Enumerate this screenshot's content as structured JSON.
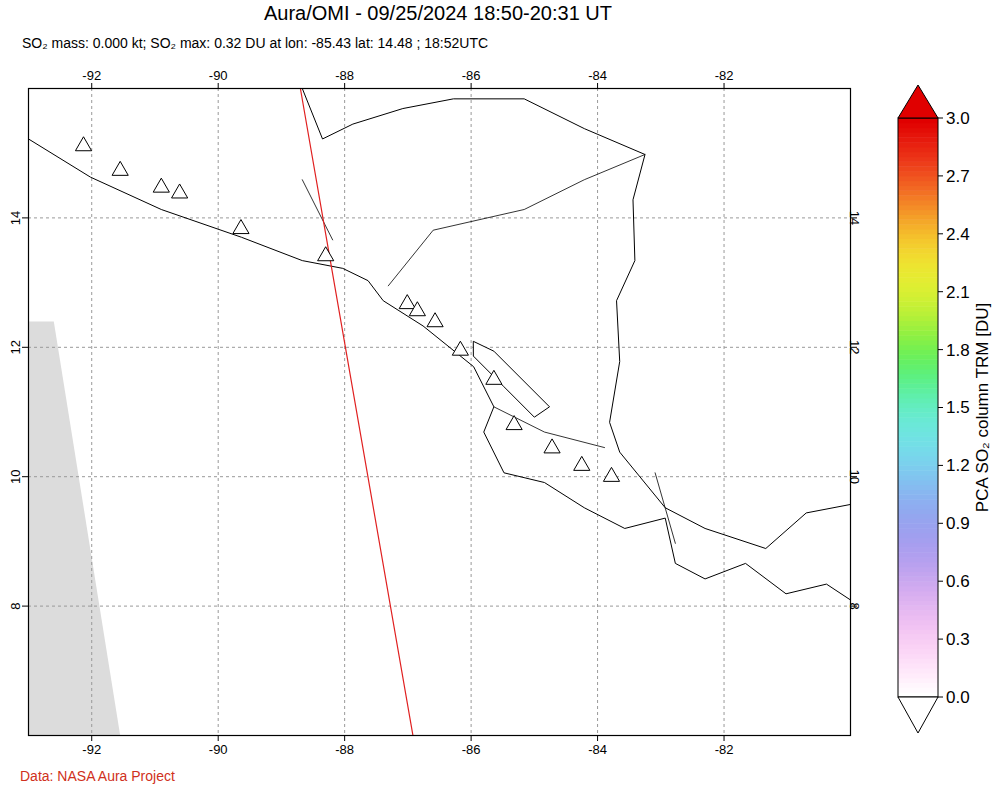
{
  "chart_data": {
    "type": "map",
    "title": "Aura/OMI - 09/25/2024 18:50-20:31 UT",
    "subtitle": "SO₂ mass: 0.000 kt; SO₂ max: 0.32 DU at lon: -85.43 lat: 14.48 ; 18:52UTC",
    "caption": "Data: NASA Aura Project",
    "xlim": [
      -93,
      -80
    ],
    "ylim": [
      6,
      16
    ],
    "xticks": [
      -92,
      -90,
      -88,
      -86,
      -84,
      -82
    ],
    "yticks": [
      8,
      10,
      12,
      14
    ],
    "grid": true,
    "coastlines": [
      [
        [
          -93.0,
          15.22
        ],
        [
          -92.02,
          14.63
        ],
        [
          -90.9,
          14.13
        ],
        [
          -89.63,
          13.7
        ],
        [
          -88.67,
          13.34
        ],
        [
          -88.03,
          13.22
        ],
        [
          -87.63,
          13.03
        ],
        [
          -87.39,
          12.72
        ],
        [
          -86.76,
          12.33
        ],
        [
          -85.96,
          11.7
        ],
        [
          -85.64,
          11.08
        ],
        [
          -85.8,
          10.69
        ],
        [
          -85.48,
          10.06
        ],
        [
          -84.84,
          9.91
        ],
        [
          -84.21,
          9.52
        ],
        [
          -83.57,
          9.2
        ],
        [
          -82.93,
          9.36
        ],
        [
          -82.77,
          8.66
        ],
        [
          -82.3,
          8.42
        ],
        [
          -81.66,
          8.66
        ],
        [
          -81.02,
          8.19
        ],
        [
          -80.38,
          8.34
        ],
        [
          -79.9,
          8.03
        ]
      ],
      [
        [
          -88.67,
          16.0
        ],
        [
          -88.35,
          15.22
        ],
        [
          -87.87,
          15.45
        ],
        [
          -87.08,
          15.69
        ],
        [
          -86.28,
          15.84
        ],
        [
          -85.16,
          15.84
        ],
        [
          -84.21,
          15.38
        ],
        [
          -83.25,
          14.98
        ],
        [
          -83.44,
          14.28
        ],
        [
          -83.41,
          13.34
        ],
        [
          -83.7,
          12.72
        ],
        [
          -83.65,
          11.78
        ],
        [
          -83.81,
          10.84
        ],
        [
          -83.65,
          10.38
        ],
        [
          -82.93,
          9.52
        ],
        [
          -82.3,
          9.2
        ],
        [
          -81.34,
          8.89
        ],
        [
          -80.7,
          9.44
        ],
        [
          -79.9,
          9.59
        ]
      ]
    ],
    "borders": [
      [
        [
          -87.31,
          12.95
        ],
        [
          -86.6,
          13.81
        ],
        [
          -85.16,
          14.13
        ],
        [
          -84.21,
          14.59
        ],
        [
          -83.25,
          14.98
        ]
      ],
      [
        [
          -85.64,
          11.08
        ],
        [
          -84.84,
          10.69
        ],
        [
          -83.89,
          10.45
        ]
      ],
      [
        [
          -83.09,
          10.06
        ],
        [
          -82.77,
          8.97
        ]
      ],
      [
        [
          -88.67,
          14.59
        ],
        [
          -88.19,
          13.66
        ]
      ]
    ],
    "lakes": [
      [
        [
          -85.96,
          12.09
        ],
        [
          -85.64,
          11.94
        ],
        [
          -84.76,
          11.08
        ],
        [
          -85.0,
          10.92
        ],
        [
          -85.48,
          11.39
        ],
        [
          -85.96,
          11.86
        ]
      ]
    ],
    "no_data": [
      [
        [
          -93.0,
          12.4
        ],
        [
          -92.6,
          12.4
        ],
        [
          -91.55,
          6.0
        ],
        [
          -93.0,
          6.0
        ]
      ]
    ],
    "orbit_track": [
      [
        -88.7,
        16.0
      ],
      [
        -86.92,
        6.0
      ]
    ],
    "volcanoes": [
      [
        -92.13,
        15.11
      ],
      [
        -91.55,
        14.73
      ],
      [
        -90.9,
        14.47
      ],
      [
        -90.61,
        14.38
      ],
      [
        -89.64,
        13.83
      ],
      [
        -88.3,
        13.41
      ],
      [
        -87.01,
        12.67
      ],
      [
        -86.85,
        12.56
      ],
      [
        -86.57,
        12.39
      ],
      [
        -86.17,
        11.95
      ],
      [
        -85.64,
        11.5
      ],
      [
        -85.32,
        10.8
      ],
      [
        -84.72,
        10.44
      ],
      [
        -84.25,
        10.17
      ],
      [
        -83.78,
        10.0
      ]
    ],
    "colorbar": {
      "label": "PCA SO₂ column TRM [DU]",
      "range": [
        0,
        3
      ],
      "ticks": [
        {
          "value": 0,
          "label": "0.0"
        },
        0.3,
        0.6,
        0.9,
        1.2,
        1.5,
        1.8,
        2.1,
        2.4,
        2.7,
        {
          "value": 3,
          "label": "3.0"
        }
      ]
    }
  }
}
